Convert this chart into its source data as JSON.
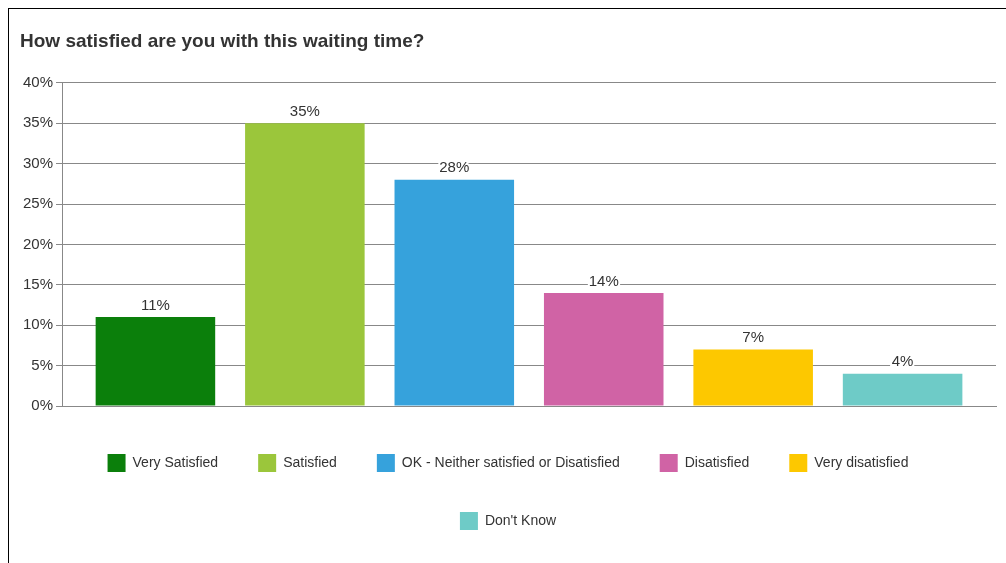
{
  "chart_data": {
    "type": "bar",
    "title": "How satisfied are you with this waiting time?",
    "categories": [
      null
    ],
    "series": [
      {
        "name": "Very Satisfied",
        "color": "#0b7f0b",
        "values": [
          11
        ],
        "value_labels": [
          "11%"
        ]
      },
      {
        "name": "Satisfied",
        "color": "#9bc63b",
        "values": [
          35
        ],
        "value_labels": [
          "35%"
        ]
      },
      {
        "name": "OK - Neither satisfied or Disatisfied",
        "color": "#36a2dc",
        "values": [
          28
        ],
        "value_labels": [
          "28%"
        ]
      },
      {
        "name": "Disatisfied",
        "color": "#d063a5",
        "values": [
          14
        ],
        "value_labels": [
          "14%"
        ]
      },
      {
        "name": "Very disatisfied",
        "color": "#fdc800",
        "values": [
          7
        ],
        "value_labels": [
          "7%"
        ]
      },
      {
        "name": "Don't Know",
        "color": "#6ecbc7",
        "values": [
          4
        ],
        "value_labels": [
          "4%"
        ]
      }
    ],
    "ylim": [
      0,
      40
    ],
    "yticks": [
      {
        "value": 0,
        "label": "0%"
      },
      {
        "value": 5,
        "label": "5%"
      },
      {
        "value": 10,
        "label": "10%"
      },
      {
        "value": 15,
        "label": "15%"
      },
      {
        "value": 20,
        "label": "20%"
      },
      {
        "value": 25,
        "label": "25%"
      },
      {
        "value": 30,
        "label": "30%"
      },
      {
        "value": 35,
        "label": "35%"
      },
      {
        "value": 40,
        "label": "40%"
      }
    ],
    "grid": "y",
    "legend": "bottom"
  }
}
